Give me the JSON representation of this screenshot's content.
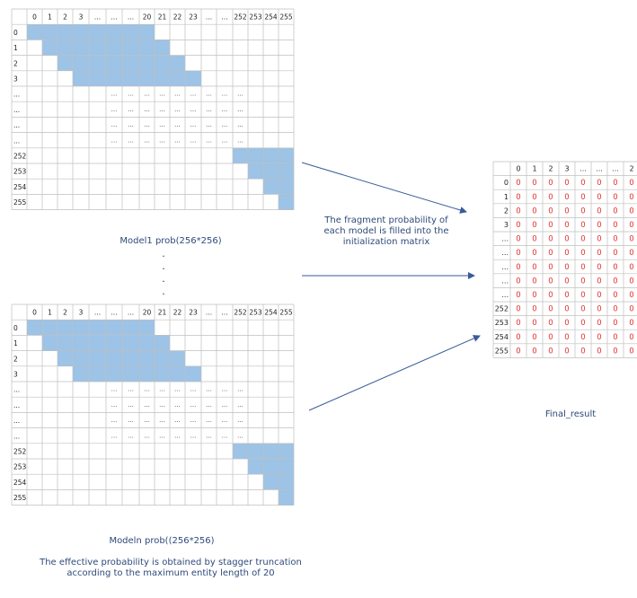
{
  "diagram": {
    "matrix_header": [
      "0",
      "1",
      "2",
      "3",
      "...",
      "...",
      "...",
      "20",
      "21",
      "22",
      "23",
      "...",
      "...",
      "252",
      "253",
      "254",
      "255"
    ],
    "row_labels": [
      "0",
      "1",
      "2",
      "3",
      "...",
      "...",
      "...",
      "...",
      "252",
      "253",
      "254",
      "255"
    ],
    "final_header": [
      "0",
      "1",
      "2",
      "3",
      "...",
      "...",
      "...",
      "2"
    ],
    "final_row_labels": [
      "0",
      "1",
      "2",
      "3",
      "...",
      "...",
      "...",
      "...",
      "...",
      "252",
      "253",
      "254",
      "255"
    ],
    "final_cell_value": "0",
    "ellipsis": "...",
    "vertical_dots": "·",
    "labels": {
      "model1": "Model1 prob(256*256)",
      "modeln": "Modeln prob((256*256)",
      "final": "Final_result",
      "fill_text": "The fragment probability of each model is filled into the initialization matrix",
      "effective_text": "The effective probability is obtained by stagger truncation according to the maximum entity length of 20"
    },
    "colors": {
      "fill": "#9dc3e6",
      "grid": "#bfbfbf",
      "zero": "#e03030",
      "arrow": "#3a5a9a",
      "caption": "#2e4a7a"
    }
  }
}
